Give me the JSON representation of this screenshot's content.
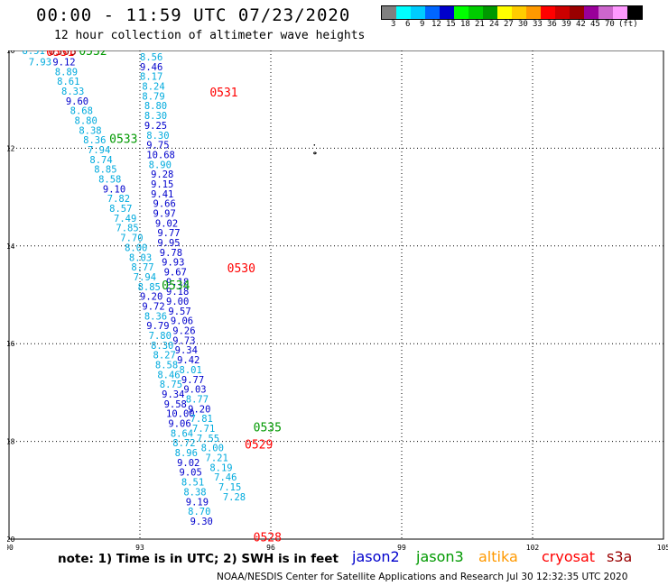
{
  "header": {
    "title": "00:00 - 11:59 UTC 07/23/2020",
    "subtitle": "12 hour collection of altimeter wave heights"
  },
  "color_scale": {
    "colors": [
      "#808080",
      "#00ffff",
      "#00ccff",
      "#0066ff",
      "#0000cc",
      "#00ff00",
      "#00cc00",
      "#009900",
      "#ffff00",
      "#ffcc00",
      "#ff9900",
      "#ff0000",
      "#cc0000",
      "#990000",
      "#990099",
      "#cc66cc",
      "#ff99ff",
      "#000000"
    ],
    "ticks": [
      "3",
      "6",
      "9",
      "12",
      "15",
      "18",
      "21",
      "24",
      "27",
      "30",
      "33",
      "36",
      "39",
      "42",
      "45",
      "70",
      "(ft)"
    ]
  },
  "map": {
    "lon_range": [
      90,
      105
    ],
    "lat_range": [
      -20,
      -10
    ],
    "lon_ticks": [
      "90",
      "93",
      "96",
      "99",
      "102",
      "105"
    ],
    "lat_ticks": [
      "-10",
      "-12",
      "-14",
      "-16",
      "-18",
      "-20"
    ]
  },
  "pass_labels": [
    {
      "text": "0531",
      "lon": 94.6,
      "lat": -10.85,
      "mission": "cryosat"
    },
    {
      "text": "0533",
      "lon": 92.3,
      "lat": -11.8,
      "mission": "jason3"
    },
    {
      "text": "0530",
      "lon": 95.0,
      "lat": -14.45,
      "mission": "cryosat"
    },
    {
      "text": "0534",
      "lon": 93.5,
      "lat": -14.8,
      "mission": "jason3"
    },
    {
      "text": "0535",
      "lon": 95.6,
      "lat": -17.7,
      "mission": "jason3"
    },
    {
      "text": "0529",
      "lon": 95.4,
      "lat": -18.05,
      "mission": "cryosat"
    },
    {
      "text": "0528",
      "lon": 95.6,
      "lat": -19.95,
      "mission": "cryosat"
    },
    {
      "text": "0532",
      "lon": 91.6,
      "lat": -10.0,
      "mission": "jason3"
    },
    {
      "text": "0363",
      "lon": 90.9,
      "lat": -10.0,
      "mission": "s3a"
    },
    {
      "text": "0531",
      "lon": 90.85,
      "lat": -10.02,
      "mission": "cryosat"
    }
  ],
  "tracks": [
    {
      "mission": "s3a",
      "points": [
        [
          90.3,
          -10.0,
          "8.51"
        ],
        [
          90.45,
          -10.23,
          "7.93"
        ]
      ]
    },
    {
      "mission": "s3a",
      "points": [
        [
          91.0,
          -10.23,
          "9.12"
        ],
        [
          91.05,
          -10.43,
          "8.89"
        ],
        [
          91.1,
          -10.63,
          "8.61"
        ],
        [
          91.2,
          -10.83,
          "8.33"
        ],
        [
          91.3,
          -11.03,
          "9.60"
        ],
        [
          91.4,
          -11.23,
          "8.68"
        ],
        [
          91.5,
          -11.43,
          "8.80"
        ],
        [
          91.6,
          -11.63,
          "8.38"
        ],
        [
          91.7,
          -11.83,
          "8.36"
        ],
        [
          91.8,
          -12.03,
          "7.94"
        ],
        [
          91.85,
          -12.23,
          "8.74"
        ],
        [
          91.95,
          -12.43,
          "8.85"
        ],
        [
          92.05,
          -12.63,
          "8.58"
        ],
        [
          92.15,
          -12.83,
          "9.10"
        ],
        [
          92.25,
          -13.03,
          "7.82"
        ],
        [
          92.3,
          -13.23,
          "8.57"
        ],
        [
          92.4,
          -13.43,
          "7.49"
        ],
        [
          92.45,
          -13.63,
          "7.85"
        ],
        [
          92.55,
          -13.83,
          "7.70"
        ],
        [
          92.65,
          -14.03,
          "8.00"
        ],
        [
          92.75,
          -14.23,
          "8.03"
        ],
        [
          92.8,
          -14.43,
          "8.77"
        ],
        [
          92.85,
          -14.63,
          "7.94"
        ],
        [
          92.95,
          -14.83,
          "8.85"
        ],
        [
          93.0,
          -15.03,
          "9.20"
        ],
        [
          93.05,
          -15.23,
          "9.72"
        ],
        [
          93.1,
          -15.43,
          "8.36"
        ],
        [
          93.15,
          -15.63,
          "9.79"
        ],
        [
          93.2,
          -15.83,
          "7.80"
        ],
        [
          93.25,
          -16.03,
          "8.30"
        ],
        [
          93.3,
          -16.23,
          "8.27"
        ],
        [
          93.35,
          -16.43,
          "8.58"
        ],
        [
          93.4,
          -16.63,
          "8.46"
        ],
        [
          93.45,
          -16.83,
          "8.75"
        ],
        [
          93.5,
          -17.03,
          "9.34"
        ],
        [
          93.55,
          -17.23,
          "9.58"
        ],
        [
          93.6,
          -17.43,
          "10.00"
        ],
        [
          93.65,
          -17.63,
          "9.06"
        ],
        [
          93.7,
          -17.83,
          "8.64"
        ],
        [
          93.75,
          -18.03,
          "8.72"
        ],
        [
          93.8,
          -18.23,
          "8.96"
        ],
        [
          93.85,
          -18.43,
          "9.02"
        ],
        [
          93.9,
          -18.63,
          "9.05"
        ],
        [
          93.95,
          -18.83,
          "8.51"
        ],
        [
          94.0,
          -19.03,
          "8.38"
        ],
        [
          94.05,
          -19.23,
          "9.19"
        ],
        [
          94.1,
          -19.43,
          "8.70"
        ],
        [
          94.15,
          -19.63,
          "9.30"
        ]
      ]
    },
    {
      "mission": "jason2",
      "points": [
        [
          93.0,
          -10.13,
          "8.56"
        ],
        [
          93.0,
          -10.33,
          "9.46"
        ],
        [
          93.0,
          -10.53,
          "8.17"
        ],
        [
          93.05,
          -10.73,
          "8.24"
        ],
        [
          93.05,
          -10.93,
          "8.79"
        ],
        [
          93.1,
          -11.13,
          "8.80"
        ],
        [
          93.1,
          -11.33,
          "8.30"
        ],
        [
          93.1,
          -11.53,
          "9.25"
        ],
        [
          93.15,
          -11.73,
          "8.30"
        ],
        [
          93.15,
          -11.93,
          "9.75"
        ],
        [
          93.15,
          -12.13,
          "10.68"
        ],
        [
          93.2,
          -12.33,
          "8.90"
        ],
        [
          93.25,
          -12.53,
          "9.28"
        ],
        [
          93.25,
          -12.73,
          "9.15"
        ],
        [
          93.25,
          -12.93,
          "9.41"
        ],
        [
          93.3,
          -13.13,
          "9.66"
        ],
        [
          93.3,
          -13.33,
          "9.97"
        ],
        [
          93.35,
          -13.53,
          "9.02"
        ],
        [
          93.4,
          -13.73,
          "9.77"
        ],
        [
          93.4,
          -13.93,
          "9.95"
        ],
        [
          93.45,
          -14.13,
          "9.78"
        ],
        [
          93.5,
          -14.33,
          "9.93"
        ],
        [
          93.55,
          -14.53,
          "9.67"
        ],
        [
          93.6,
          -14.73,
          "9.18"
        ],
        [
          93.6,
          -14.93,
          "9.18"
        ],
        [
          93.6,
          -15.13,
          "9.00"
        ],
        [
          93.65,
          -15.33,
          "9.57"
        ],
        [
          93.7,
          -15.53,
          "9.06"
        ],
        [
          93.75,
          -15.73,
          "9.26"
        ],
        [
          93.75,
          -15.93,
          "9.73"
        ],
        [
          93.8,
          -16.13,
          "9.34"
        ],
        [
          93.85,
          -16.33,
          "9.42"
        ]
      ]
    },
    {
      "mission": "jason2b",
      "points": [
        [
          93.9,
          -16.53,
          "8.01"
        ],
        [
          93.95,
          -16.73,
          "9.77"
        ],
        [
          94.0,
          -16.93,
          "9.03"
        ],
        [
          94.05,
          -17.13,
          "8.77"
        ],
        [
          94.1,
          -17.33,
          "9.20"
        ],
        [
          94.15,
          -17.53,
          "7.81"
        ],
        [
          94.2,
          -17.73,
          "7.71"
        ],
        [
          94.3,
          -17.93,
          "7.55"
        ],
        [
          94.4,
          -18.13,
          "8.00"
        ],
        [
          94.5,
          -18.33,
          "7.21"
        ],
        [
          94.6,
          -18.53,
          "8.19"
        ],
        [
          94.7,
          -18.73,
          "7.46"
        ],
        [
          94.8,
          -18.93,
          "7.15"
        ],
        [
          94.9,
          -19.13,
          "7.28"
        ]
      ]
    }
  ],
  "island": {
    "lon": 97.0,
    "lat": -12.1
  },
  "footer": {
    "note": "note: 1) Time is in UTC; 2) SWH is in feet",
    "legend": [
      {
        "name": "jason2",
        "color": "#0000cc"
      },
      {
        "name": "jason3",
        "color": "#009900"
      },
      {
        "name": "altika",
        "color": "#ff9900"
      },
      {
        "name": "cryosat",
        "color": "#ff0000"
      },
      {
        "name": "s3a",
        "color": "#990000"
      }
    ],
    "credit": "NOAA/NESDIS Center for Satellite Applications and Research   Jul 30 12:32:35 UTC 2020"
  }
}
